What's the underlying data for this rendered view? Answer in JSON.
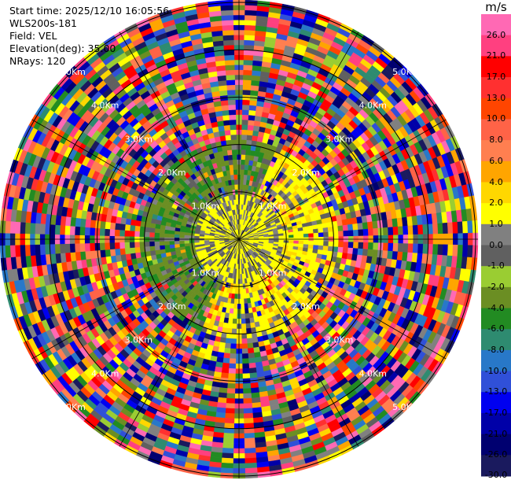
{
  "header": {
    "start_time": "Start time: 2025/12/10 16:05:56",
    "instrument": "WLS200s-181",
    "field": "Field: VEL",
    "elevation": "Elevation(deg): 35.00",
    "nrays": "NRays: 120"
  },
  "chart_data": {
    "type": "heatmap",
    "subtype": "polar-ppi",
    "field": "VEL",
    "units": "m/s",
    "elevation_deg": 35.0,
    "n_rays": 120,
    "range_rings_km": [
      1.0,
      2.0,
      3.0,
      4.0,
      5.0
    ],
    "ring_labels": [
      "1.0Km",
      "2.0Km",
      "3.0Km",
      "4.0Km",
      "5.0Km"
    ],
    "max_range_km": 5.05,
    "colorbar": {
      "unit": "m/s",
      "colors": [
        "#1a1a5e",
        "#000070",
        "#0000a8",
        "#0000f0",
        "#3050d8",
        "#2878c8",
        "#2e8b70",
        "#228b22",
        "#6b8e23",
        "#9acd32",
        "#606060",
        "#808080",
        "#ffff00",
        "#ffd700",
        "#ffa500",
        "#ff7f50",
        "#ff6347",
        "#ff4500",
        "#ff3030",
        "#ff0000",
        "#ff4080",
        "#ff69b4"
      ],
      "ticks": [
        "26.0",
        "21.0",
        "17.0",
        "13.0",
        "10.0",
        "8.0",
        "6.0",
        "4.0",
        "2.0",
        "1.0",
        "0.0",
        "-1.0",
        "-2.0",
        "-4.0",
        "-6.0",
        "-8.0",
        "-10.0",
        "-13.0",
        "-17.0",
        "-21.0",
        "-26.0",
        "-30.0"
      ]
    }
  }
}
